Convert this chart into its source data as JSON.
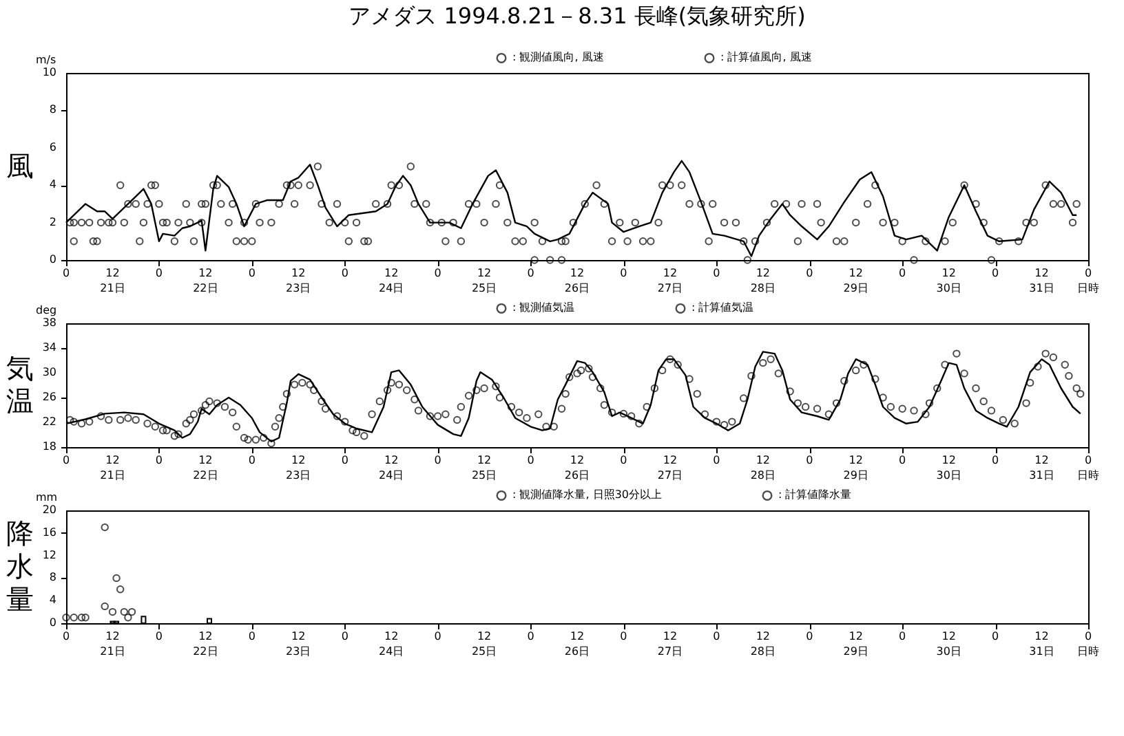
{
  "chart_data": [
    {
      "type": "scatter",
      "title": "アメダス 1994.8.21－8.31 長峰(気象研究所)",
      "ylabel": "風",
      "annotations": [
        "m/s"
      ],
      "xlim": [
        "1994-08-21T00:00",
        "1994-09-01T00:00"
      ],
      "ylim": [
        0,
        10
      ],
      "yticks": [
        0,
        2,
        4,
        6,
        8,
        10
      ],
      "legend": "top right",
      "xticks": [
        {
          "value": "1994-08-21T00:00",
          "label": "0"
        },
        {
          "value": "1994-08-21T12:00",
          "label": "12\n21日"
        },
        {
          "value": "1994-08-22T00:00",
          "label": "0"
        },
        {
          "value": "1994-08-22T12:00",
          "label": "12\n22日"
        },
        {
          "value": "1994-08-23T00:00",
          "label": "0"
        },
        {
          "value": "1994-08-23T12:00",
          "label": "12\n23日"
        },
        {
          "value": "1994-08-24T00:00",
          "label": "0"
        },
        {
          "value": "1994-08-24T12:00",
          "label": "12\n24日"
        },
        {
          "value": "1994-08-25T00:00",
          "label": "0"
        },
        {
          "value": "1994-08-25T12:00",
          "label": "12\n25日"
        },
        {
          "value": "1994-08-26T00:00",
          "label": "0"
        },
        {
          "value": "1994-08-26T12:00",
          "label": "12\n26日"
        },
        {
          "value": "1994-08-27T00:00",
          "label": "0"
        },
        {
          "value": "1994-08-27T12:00",
          "label": "12\n27日"
        },
        {
          "value": "1994-08-28T00:00",
          "label": "0"
        },
        {
          "value": "1994-08-28T12:00",
          "label": "12\n28日"
        },
        {
          "value": "1994-08-29T00:00",
          "label": "0"
        },
        {
          "value": "1994-08-29T12:00",
          "label": "12\n29日"
        },
        {
          "value": "1994-08-30T00:00",
          "label": "0"
        },
        {
          "value": "1994-08-30T12:00",
          "label": "12\n30日"
        },
        {
          "value": "1994-08-31T00:00",
          "label": "0"
        },
        {
          "value": "1994-08-31T12:00",
          "label": "12\n31日"
        },
        {
          "value": "1994-09-01T00:00",
          "label": "0\n日時"
        }
      ],
      "series": [
        {
          "name": ": 観測値風向, 風速",
          "marker": "circle",
          "color": "#000000",
          "x": [
            "1994-08-21T01:00",
            "1994-08-21T02:00",
            "1994-08-21T02:00",
            "1994-08-21T04:00",
            "1994-08-21T06:00",
            "1994-08-21T07:00",
            "1994-08-21T08:00",
            "1994-08-21T09:00",
            "1994-08-21T11:00",
            "1994-08-21T12:00",
            "1994-08-21T14:00",
            "1994-08-21T15:00",
            "1994-08-21T16:00",
            "1994-08-21T18:00",
            "1994-08-21T19:00",
            "1994-08-21T20:00",
            "1994-08-21T21:00",
            "1994-08-21T22:00",
            "1994-08-21T23:00",
            "1994-08-22T00:00",
            "1994-08-22T01:00",
            "1994-08-22T02:00",
            "1994-08-22T04:00",
            "1994-08-22T05:00",
            "1994-08-22T07:00",
            "1994-08-22T08:00",
            "1994-08-22T09:00",
            "1994-08-22T11:00",
            "1994-08-22T11:00",
            "1994-08-22T12:00",
            "1994-08-22T14:00",
            "1994-08-22T15:00",
            "1994-08-22T16:00",
            "1994-08-22T18:00",
            "1994-08-22T19:00",
            "1994-08-22T20:00",
            "1994-08-22T22:00",
            "1994-08-22T22:00",
            "1994-08-23T00:00",
            "1994-08-23T01:00",
            "1994-08-23T02:00",
            "1994-08-23T05:00",
            "1994-08-23T07:00",
            "1994-08-23T09:00",
            "1994-08-23T10:00",
            "1994-08-23T11:00",
            "1994-08-23T12:00",
            "1994-08-23T15:00",
            "1994-08-23T17:00",
            "1994-08-23T18:00",
            "1994-08-23T20:00",
            "1994-08-23T22:00",
            "1994-08-24T00:00",
            "1994-08-24T01:00",
            "1994-08-24T03:00",
            "1994-08-24T05:00",
            "1994-08-24T06:00",
            "1994-08-24T08:00",
            "1994-08-24T11:00",
            "1994-08-24T12:00",
            "1994-08-24T14:00",
            "1994-08-24T17:00",
            "1994-08-24T18:00",
            "1994-08-24T21:00",
            "1994-08-24T22:00",
            "1994-08-25T01:00",
            "1994-08-25T02:00",
            "1994-08-25T04:00",
            "1994-08-25T06:00",
            "1994-08-25T08:00",
            "1994-08-25T10:00",
            "1994-08-25T12:00",
            "1994-08-25T15:00",
            "1994-08-25T16:00",
            "1994-08-25T18:00",
            "1994-08-25T20:00",
            "1994-08-25T22:00",
            "1994-08-26T01:00",
            "1994-08-26T01:00",
            "1994-08-26T03:00",
            "1994-08-26T05:00",
            "1994-08-26T08:00",
            "1994-08-26T08:00",
            "1994-08-26T09:00",
            "1994-08-26T11:00",
            "1994-08-26T14:00",
            "1994-08-26T17:00",
            "1994-08-26T19:00",
            "1994-08-26T21:00",
            "1994-08-26T23:00",
            "1994-08-27T01:00",
            "1994-08-27T03:00",
            "1994-08-27T05:00",
            "1994-08-27T07:00",
            "1994-08-27T09:00",
            "1994-08-27T10:00",
            "1994-08-27T12:00",
            "1994-08-27T15:00",
            "1994-08-27T17:00",
            "1994-08-27T20:00",
            "1994-08-27T22:00",
            "1994-08-27T23:00",
            "1994-08-28T02:00",
            "1994-08-28T05:00",
            "1994-08-28T07:00",
            "1994-08-28T08:00",
            "1994-08-28T10:00",
            "1994-08-28T13:00",
            "1994-08-28T15:00",
            "1994-08-28T18:00",
            "1994-08-28T21:00",
            "1994-08-28T22:00",
            "1994-08-29T02:00",
            "1994-08-29T03:00",
            "1994-08-29T07:00",
            "1994-08-29T09:00",
            "1994-08-29T12:00",
            "1994-08-29T15:00",
            "1994-08-29T17:00",
            "1994-08-29T19:00",
            "1994-08-29T22:00",
            "1994-08-30T00:00",
            "1994-08-30T03:00",
            "1994-08-30T06:00",
            "1994-08-30T11:00",
            "1994-08-30T13:00",
            "1994-08-30T16:00",
            "1994-08-30T19:00",
            "1994-08-30T21:00",
            "1994-08-30T23:00",
            "1994-08-31T01:00",
            "1994-08-31T06:00",
            "1994-08-31T08:00",
            "1994-08-31T10:00",
            "1994-08-31T13:00",
            "1994-08-31T15:00",
            "1994-08-31T17:00",
            "1994-08-31T20:00",
            "1994-08-31T21:00"
          ],
          "values": [
            2,
            1,
            2,
            2,
            2,
            1,
            1,
            2,
            2,
            2,
            4,
            2,
            3,
            3,
            1,
            2,
            3,
            4,
            4,
            3,
            2,
            2,
            1,
            2,
            3,
            2,
            1,
            2,
            3,
            3,
            4,
            4,
            3,
            2,
            3,
            1,
            1,
            2,
            1,
            3,
            2,
            2,
            3,
            4,
            4,
            3,
            4,
            4,
            5,
            3,
            2,
            3,
            2,
            1,
            2,
            1,
            1,
            3,
            3,
            4,
            4,
            5,
            3,
            3,
            2,
            2,
            1,
            2,
            1,
            3,
            3,
            2,
            3,
            4,
            2,
            1,
            1,
            0,
            2,
            1,
            0,
            0,
            1,
            1,
            2,
            3,
            4,
            3,
            1,
            2,
            1,
            2,
            1,
            1,
            2,
            4,
            4,
            4,
            3,
            3,
            1,
            3,
            2,
            2,
            1,
            0,
            1,
            2,
            3,
            3,
            1,
            3,
            3,
            2,
            1,
            1,
            2,
            3,
            4,
            2,
            2,
            1,
            0,
            1,
            1,
            2,
            4,
            3,
            2,
            0,
            1,
            1,
            2,
            2,
            4,
            3,
            3,
            2,
            3
          ]
        },
        {
          "name": ": 計算値風向, 風速",
          "type": "line",
          "color": "#000000",
          "x": [
            "1994-08-21T00:00",
            "1994-08-21T05:00",
            "1994-08-21T08:00",
            "1994-08-21T10:00",
            "1994-08-21T12:00",
            "1994-08-21T15:00",
            "1994-08-21T18:00",
            "1994-08-21T20:00",
            "1994-08-21T22:00",
            "1994-08-22T00:00",
            "1994-08-22T01:00",
            "1994-08-22T04:00",
            "1994-08-22T06:00",
            "1994-08-22T08:00",
            "1994-08-22T11:00",
            "1994-08-22T12:00",
            "1994-08-22T14:00",
            "1994-08-22T15:00",
            "1994-08-22T18:00",
            "1994-08-22T20:00",
            "1994-08-22T22:00",
            "1994-08-23T01:00",
            "1994-08-23T04:00",
            "1994-08-23T08:00",
            "1994-08-23T10:00",
            "1994-08-23T12:00",
            "1994-08-23T15:00",
            "1994-08-23T17:00",
            "1994-08-23T19:00",
            "1994-08-23T22:00",
            "1994-08-24T01:00",
            "1994-08-24T08:00",
            "1994-08-24T11:00",
            "1994-08-24T13:00",
            "1994-08-24T15:00",
            "1994-08-24T17:00",
            "1994-08-24T19:00",
            "1994-08-24T22:00",
            "1994-08-25T03:00",
            "1994-08-25T06:00",
            "1994-08-25T09:00",
            "1994-08-25T13:00",
            "1994-08-25T15:00",
            "1994-08-25T18:00",
            "1994-08-25T20:00",
            "1994-08-25T23:00",
            "1994-08-26T01:00",
            "1994-08-26T05:00",
            "1994-08-26T07:00",
            "1994-08-26T10:00",
            "1994-08-26T14:00",
            "1994-08-26T16:00",
            "1994-08-26T20:00",
            "1994-08-26T21:00",
            "1994-08-27T00:00",
            "1994-08-27T04:00",
            "1994-08-27T07:00",
            "1994-08-27T10:00",
            "1994-08-27T13:00",
            "1994-08-27T15:00",
            "1994-08-27T17:00",
            "1994-08-27T20:00",
            "1994-08-27T23:00",
            "1994-08-28T02:00",
            "1994-08-28T07:00",
            "1994-08-28T09:00",
            "1994-08-28T11:00",
            "1994-08-28T14:00",
            "1994-08-28T17:00",
            "1994-08-28T19:00",
            "1994-08-28T22:00",
            "1994-08-29T02:00",
            "1994-08-29T05:00",
            "1994-08-29T09:00",
            "1994-08-29T13:00",
            "1994-08-29T16:00",
            "1994-08-29T19:00",
            "1994-08-29T22:00",
            "1994-08-30T01:00",
            "1994-08-30T05:00",
            "1994-08-30T09:00",
            "1994-08-30T12:00",
            "1994-08-30T16:00",
            "1994-08-30T19:00",
            "1994-08-30T22:00",
            "1994-08-31T01:00",
            "1994-08-31T07:00",
            "1994-08-31T10:00",
            "1994-08-31T14:00",
            "1994-08-31T17:00",
            "1994-08-31T20:00",
            "1994-08-31T21:00"
          ],
          "values": [
            2.0,
            3.0,
            2.6,
            2.6,
            2.2,
            2.8,
            3.4,
            3.8,
            3.0,
            1.0,
            1.4,
            1.3,
            1.7,
            1.8,
            2.1,
            0.5,
            3.8,
            4.5,
            3.9,
            3.0,
            1.8,
            3.0,
            3.2,
            3.2,
            4.2,
            4.4,
            5.1,
            4.0,
            2.8,
            1.8,
            2.4,
            2.6,
            3.0,
            3.9,
            4.5,
            4.0,
            3.0,
            2.0,
            2.0,
            1.7,
            3.0,
            4.5,
            4.8,
            3.6,
            2.0,
            1.8,
            1.4,
            1.0,
            1.1,
            1.4,
            3.0,
            3.6,
            3.0,
            2.0,
            1.5,
            1.8,
            2.0,
            3.6,
            4.7,
            5.3,
            4.7,
            3.1,
            1.4,
            1.3,
            1.0,
            0.2,
            1.3,
            2.2,
            3.0,
            2.4,
            1.8,
            1.1,
            1.8,
            3.1,
            4.3,
            4.7,
            3.4,
            1.3,
            1.1,
            1.3,
            0.5,
            2.3,
            4.0,
            2.6,
            1.3,
            1.0,
            1.1,
            2.7,
            4.2,
            3.6,
            2.4,
            2.4
          ]
        }
      ]
    },
    {
      "type": "scatter",
      "ylabel": "気温",
      "annotations": [
        "deg"
      ],
      "xlim": [
        "1994-08-21T00:00",
        "1994-09-01T00:00"
      ],
      "ylim": [
        18,
        38
      ],
      "yticks": [
        18,
        22,
        26,
        30,
        34,
        38
      ],
      "legend": "top right",
      "xticks": [
        {
          "value": "1994-08-21T00:00",
          "label": "0"
        },
        {
          "value": "1994-08-21T12:00",
          "label": "12\n21日"
        },
        {
          "value": "1994-08-22T00:00",
          "label": "0"
        },
        {
          "value": "1994-08-22T12:00",
          "label": "12\n22日"
        },
        {
          "value": "1994-08-23T00:00",
          "label": "0"
        },
        {
          "value": "1994-08-23T12:00",
          "label": "12\n23日"
        },
        {
          "value": "1994-08-24T00:00",
          "label": "0"
        },
        {
          "value": "1994-08-24T12:00",
          "label": "12\n24日"
        },
        {
          "value": "1994-08-25T00:00",
          "label": "0"
        },
        {
          "value": "1994-08-25T12:00",
          "label": "12\n25日"
        },
        {
          "value": "1994-08-26T00:00",
          "label": "0"
        },
        {
          "value": "1994-08-26T12:00",
          "label": "12\n26日"
        },
        {
          "value": "1994-08-27T00:00",
          "label": "0"
        },
        {
          "value": "1994-08-27T12:00",
          "label": "12\n27日"
        },
        {
          "value": "1994-08-28T00:00",
          "label": "0"
        },
        {
          "value": "1994-08-28T12:00",
          "label": "12\n28日"
        },
        {
          "value": "1994-08-29T00:00",
          "label": "0"
        },
        {
          "value": "1994-08-29T12:00",
          "label": "12\n29日"
        },
        {
          "value": "1994-08-30T00:00",
          "label": "0"
        },
        {
          "value": "1994-08-30T12:00",
          "label": "12\n30日"
        },
        {
          "value": "1994-08-31T00:00",
          "label": "0"
        },
        {
          "value": "1994-08-31T12:00",
          "label": "12\n31日"
        },
        {
          "value": "1994-09-01T00:00",
          "label": "0\n日時"
        }
      ],
      "series": [
        {
          "name": ": 観測値気温",
          "marker": "circle",
          "color": "#000000",
          "x": [
            "1994-08-21T01:00",
            "1994-08-21T02:00",
            "1994-08-21T04:00",
            "1994-08-21T06:00",
            "1994-08-21T09:00",
            "1994-08-21T11:00",
            "1994-08-21T14:00",
            "1994-08-21T16:00",
            "1994-08-21T18:00",
            "1994-08-21T21:00",
            "1994-08-21T23:00",
            "1994-08-22T01:00",
            "1994-08-22T02:00",
            "1994-08-22T04:00",
            "1994-08-22T05:00",
            "1994-08-22T07:00",
            "1994-08-22T08:00",
            "1994-08-22T09:00",
            "1994-08-22T11:00",
            "1994-08-22T12:00",
            "1994-08-22T13:00",
            "1994-08-22T15:00",
            "1994-08-22T17:00",
            "1994-08-22T19:00",
            "1994-08-22T20:00",
            "1994-08-22T22:00",
            "1994-08-22T23:00",
            "1994-08-23T01:00",
            "1994-08-23T03:00",
            "1994-08-23T05:00",
            "1994-08-23T06:00",
            "1994-08-23T07:00",
            "1994-08-23T08:00",
            "1994-08-23T09:00",
            "1994-08-23T11:00",
            "1994-08-23T13:00",
            "1994-08-23T15:00",
            "1994-08-23T16:00",
            "1994-08-23T18:00",
            "1994-08-23T19:00",
            "1994-08-23T22:00",
            "1994-08-24T00:00",
            "1994-08-24T02:00",
            "1994-08-24T03:00",
            "1994-08-24T05:00",
            "1994-08-24T07:00",
            "1994-08-24T09:00",
            "1994-08-24T11:00",
            "1994-08-24T12:00",
            "1994-08-24T14:00",
            "1994-08-24T16:00",
            "1994-08-24T18:00",
            "1994-08-24T19:00",
            "1994-08-24T22:00",
            "1994-08-25T00:00",
            "1994-08-25T02:00",
            "1994-08-25T05:00",
            "1994-08-25T06:00",
            "1994-08-25T08:00",
            "1994-08-25T10:00",
            "1994-08-25T12:00",
            "1994-08-25T15:00",
            "1994-08-25T16:00",
            "1994-08-25T19:00",
            "1994-08-25T21:00",
            "1994-08-25T23:00",
            "1994-08-26T02:00",
            "1994-08-26T04:00",
            "1994-08-26T06:00",
            "1994-08-26T08:00",
            "1994-08-26T09:00",
            "1994-08-26T10:00",
            "1994-08-26T12:00",
            "1994-08-26T13:00",
            "1994-08-26T15:00",
            "1994-08-26T16:00",
            "1994-08-26T18:00",
            "1994-08-26T19:00",
            "1994-08-26T21:00",
            "1994-08-27T00:00",
            "1994-08-27T02:00",
            "1994-08-27T04:00",
            "1994-08-27T06:00",
            "1994-08-27T08:00",
            "1994-08-27T10:00",
            "1994-08-27T12:00",
            "1994-08-27T14:00",
            "1994-08-27T17:00",
            "1994-08-27T19:00",
            "1994-08-27T21:00",
            "1994-08-28T00:00",
            "1994-08-28T02:00",
            "1994-08-28T04:00",
            "1994-08-28T07:00",
            "1994-08-28T09:00",
            "1994-08-28T12:00",
            "1994-08-28T14:00",
            "1994-08-28T16:00",
            "1994-08-28T19:00",
            "1994-08-28T21:00",
            "1994-08-28T23:00",
            "1994-08-29T02:00",
            "1994-08-29T05:00",
            "1994-08-29T07:00",
            "1994-08-29T09:00",
            "1994-08-29T12:00",
            "1994-08-29T14:00",
            "1994-08-29T17:00",
            "1994-08-29T19:00",
            "1994-08-29T21:00",
            "1994-08-30T00:00",
            "1994-08-30T03:00",
            "1994-08-30T06:00",
            "1994-08-30T07:00",
            "1994-08-30T09:00",
            "1994-08-30T11:00",
            "1994-08-30T14:00",
            "1994-08-30T16:00",
            "1994-08-30T19:00",
            "1994-08-30T21:00",
            "1994-08-30T23:00",
            "1994-08-31T02:00",
            "1994-08-31T05:00",
            "1994-08-31T08:00",
            "1994-08-31T09:00",
            "1994-08-31T11:00",
            "1994-08-31T13:00",
            "1994-08-31T15:00",
            "1994-08-31T18:00",
            "1994-08-31T19:00",
            "1994-08-31T21:00",
            "1994-08-31T22:00"
          ],
          "values": [
            22.4,
            22.1,
            21.8,
            22.1,
            23.0,
            22.4,
            22.4,
            22.7,
            22.4,
            21.8,
            21.3,
            20.7,
            20.7,
            19.8,
            20.1,
            21.8,
            22.4,
            23.3,
            23.9,
            24.8,
            25.4,
            25.1,
            24.5,
            23.6,
            21.3,
            19.5,
            19.2,
            19.2,
            19.5,
            18.6,
            21.3,
            22.7,
            24.5,
            26.6,
            28.1,
            28.4,
            28.1,
            27.2,
            25.4,
            24.2,
            23.0,
            22.1,
            20.7,
            20.4,
            19.8,
            23.3,
            25.4,
            27.2,
            28.4,
            28.1,
            27.2,
            25.7,
            23.9,
            23.0,
            23.0,
            23.3,
            22.4,
            24.5,
            26.3,
            27.2,
            27.5,
            27.8,
            26.0,
            24.5,
            23.6,
            22.7,
            23.3,
            21.3,
            21.3,
            24.2,
            26.6,
            29.3,
            29.9,
            30.4,
            30.7,
            29.3,
            27.5,
            24.8,
            23.6,
            23.4,
            23.0,
            21.8,
            24.5,
            27.5,
            30.4,
            32.2,
            31.3,
            29.0,
            26.6,
            23.3,
            22.1,
            21.6,
            22.1,
            25.9,
            29.5,
            31.6,
            32.2,
            29.9,
            27.0,
            25.1,
            24.5,
            24.2,
            23.3,
            25.1,
            28.7,
            30.4,
            31.3,
            29.0,
            26.0,
            24.5,
            24.2,
            23.9,
            23.3,
            25.1,
            27.5,
            31.3,
            33.1,
            29.9,
            27.5,
            25.4,
            23.9,
            22.4,
            21.8,
            25.1,
            28.4,
            31.0,
            33.1,
            32.5,
            31.3,
            29.5,
            27.5,
            26.6
          ]
        },
        {
          "name": ": 計算値気温",
          "type": "line",
          "color": "#000000",
          "x": [
            "1994-08-21T00:00",
            "1994-08-21T05:00",
            "1994-08-21T10:00",
            "1994-08-21T15:00",
            "1994-08-21T20:00",
            "1994-08-22T00:00",
            "1994-08-22T04:00",
            "1994-08-22T06:00",
            "1994-08-22T08:00",
            "1994-08-22T10:00",
            "1994-08-22T11:00",
            "1994-08-22T13:00",
            "1994-08-22T15:00",
            "1994-08-22T18:00",
            "1994-08-22T21:00",
            "1994-08-23T00:00",
            "1994-08-23T02:00",
            "1994-08-23T05:00",
            "1994-08-23T07:00",
            "1994-08-23T09:00",
            "1994-08-23T10:00",
            "1994-08-23T12:00",
            "1994-08-23T15:00",
            "1994-08-23T18:00",
            "1994-08-23T21:00",
            "1994-08-24T00:00",
            "1994-08-24T03:00",
            "1994-08-24T07:00",
            "1994-08-24T10:00",
            "1994-08-24T12:00",
            "1994-08-24T14:00",
            "1994-08-24T17:00",
            "1994-08-24T20:00",
            "1994-08-25T00:00",
            "1994-08-25T04:00",
            "1994-08-25T06:00",
            "1994-08-25T08:00",
            "1994-08-25T10:00",
            "1994-08-25T11:00",
            "1994-08-25T14:00",
            "1994-08-25T17:00",
            "1994-08-25T20:00",
            "1994-08-26T00:00",
            "1994-08-26T03:00",
            "1994-08-26T05:00",
            "1994-08-26T07:00",
            "1994-08-26T09:00",
            "1994-08-26T12:00",
            "1994-08-26T14:00",
            "1994-08-26T16:00",
            "1994-08-26T19:00",
            "1994-08-26T21:00",
            "1994-08-26T23:00",
            "1994-08-27T02:00",
            "1994-08-27T05:00",
            "1994-08-27T07:00",
            "1994-08-27T09:00",
            "1994-08-27T11:00",
            "1994-08-27T13:00",
            "1994-08-27T16:00",
            "1994-08-27T18:00",
            "1994-08-27T21:00",
            "1994-08-28T00:00",
            "1994-08-28T03:00",
            "1994-08-28T06:00",
            "1994-08-28T08:00",
            "1994-08-28T10:00",
            "1994-08-28T12:00",
            "1994-08-28T15:00",
            "1994-08-28T17:00",
            "1994-08-28T19:00",
            "1994-08-28T22:00",
            "1994-08-29T02:00",
            "1994-08-29T05:00",
            "1994-08-29T08:00",
            "1994-08-29T10:00",
            "1994-08-29T12:00",
            "1994-08-29T15:00",
            "1994-08-29T17:00",
            "1994-08-29T19:00",
            "1994-08-29T22:00",
            "1994-08-30T01:00",
            "1994-08-30T04:00",
            "1994-08-30T07:00",
            "1994-08-30T10:00",
            "1994-08-30T12:00",
            "1994-08-30T14:00",
            "1994-08-30T16:00",
            "1994-08-30T19:00",
            "1994-08-30T22:00",
            "1994-08-31T01:00",
            "1994-08-31T03:00",
            "1994-08-31T06:00",
            "1994-08-31T09:00",
            "1994-08-31T12:00",
            "1994-08-31T14:00",
            "1994-08-31T17:00",
            "1994-08-31T20:00",
            "1994-08-31T22:00"
          ],
          "values": [
            21.8,
            22.5,
            23.4,
            23.6,
            23.3,
            21.8,
            20.7,
            19.5,
            20.1,
            22.1,
            24.2,
            23.3,
            24.8,
            26.0,
            24.8,
            22.7,
            20.4,
            18.9,
            19.5,
            25.1,
            28.7,
            29.8,
            28.9,
            26.0,
            23.3,
            21.8,
            21.0,
            20.4,
            24.5,
            30.1,
            30.4,
            28.1,
            24.5,
            21.6,
            20.1,
            19.8,
            22.7,
            28.7,
            30.1,
            28.9,
            26.0,
            22.7,
            21.3,
            20.7,
            21.0,
            25.7,
            28.1,
            31.9,
            31.6,
            30.1,
            26.9,
            23.0,
            23.6,
            22.7,
            21.8,
            24.8,
            30.4,
            32.2,
            32.2,
            29.6,
            24.5,
            22.7,
            21.8,
            20.7,
            21.8,
            25.7,
            31.0,
            33.4,
            33.1,
            30.4,
            25.7,
            23.6,
            23.0,
            22.4,
            25.7,
            29.9,
            32.2,
            31.3,
            28.1,
            24.5,
            22.7,
            21.8,
            22.1,
            24.5,
            28.7,
            31.6,
            31.3,
            27.5,
            23.9,
            22.7,
            21.8,
            21.3,
            24.5,
            30.1,
            32.2,
            31.3,
            27.5,
            24.5,
            23.4
          ]
        }
      ]
    },
    {
      "type": "scatter",
      "ylabel": "降水量",
      "annotations": [
        "mm"
      ],
      "xlim": [
        "1994-08-21T00:00",
        "1994-09-01T00:00"
      ],
      "ylim": [
        0,
        20
      ],
      "yticks": [
        0,
        4,
        8,
        12,
        16,
        20
      ],
      "legend": "top right",
      "xticks": [
        {
          "value": "1994-08-21T00:00",
          "label": "0"
        },
        {
          "value": "1994-08-21T12:00",
          "label": "12\n21日"
        },
        {
          "value": "1994-08-22T00:00",
          "label": "0"
        },
        {
          "value": "1994-08-22T12:00",
          "label": "12\n22日"
        },
        {
          "value": "1994-08-23T00:00",
          "label": "0"
        },
        {
          "value": "1994-08-23T12:00",
          "label": "12\n23日"
        },
        {
          "value": "1994-08-24T00:00",
          "label": "0"
        },
        {
          "value": "1994-08-24T12:00",
          "label": "12\n24日"
        },
        {
          "value": "1994-08-25T00:00",
          "label": "0"
        },
        {
          "value": "1994-08-25T12:00",
          "label": "12\n25日"
        },
        {
          "value": "1994-08-26T00:00",
          "label": "0"
        },
        {
          "value": "1994-08-26T12:00",
          "label": "12\n26日"
        },
        {
          "value": "1994-08-27T00:00",
          "label": "0"
        },
        {
          "value": "1994-08-27T12:00",
          "label": "12\n27日"
        },
        {
          "value": "1994-08-28T00:00",
          "label": "0"
        },
        {
          "value": "1994-08-28T12:00",
          "label": "12\n28日"
        },
        {
          "value": "1994-08-29T00:00",
          "label": "0"
        },
        {
          "value": "1994-08-29T12:00",
          "label": "12\n29日"
        },
        {
          "value": "1994-08-30T00:00",
          "label": "0"
        },
        {
          "value": "1994-08-30T12:00",
          "label": "12\n30日"
        },
        {
          "value": "1994-08-31T00:00",
          "label": "0"
        },
        {
          "value": "1994-08-31T12:00",
          "label": "12\n31日"
        },
        {
          "value": "1994-09-01T00:00",
          "label": "0\n日時"
        }
      ],
      "series": [
        {
          "name": ": 観測値降水量, 日照30分以上",
          "marker": "circle",
          "color": "#000000",
          "x": [
            "1994-08-21T00:00",
            "1994-08-21T02:00",
            "1994-08-21T04:00",
            "1994-08-21T05:00",
            "1994-08-21T10:00",
            "1994-08-21T10:00",
            "1994-08-21T12:00",
            "1994-08-21T13:00",
            "1994-08-21T14:00",
            "1994-08-21T15:00",
            "1994-08-21T16:00",
            "1994-08-21T17:00"
          ],
          "values": [
            1,
            1,
            1,
            1,
            3,
            17,
            2,
            8,
            6,
            2,
            1,
            2
          ]
        },
        {
          "name": ": 計算値降水量",
          "type": "bar",
          "color": "#000000",
          "x": [
            "1994-08-21T12:00",
            "1994-08-21T13:00",
            "1994-08-21T20:00",
            "1994-08-22T13:00"
          ],
          "values": [
            0.3,
            0.3,
            1.2,
            0.8
          ]
        }
      ]
    }
  ]
}
